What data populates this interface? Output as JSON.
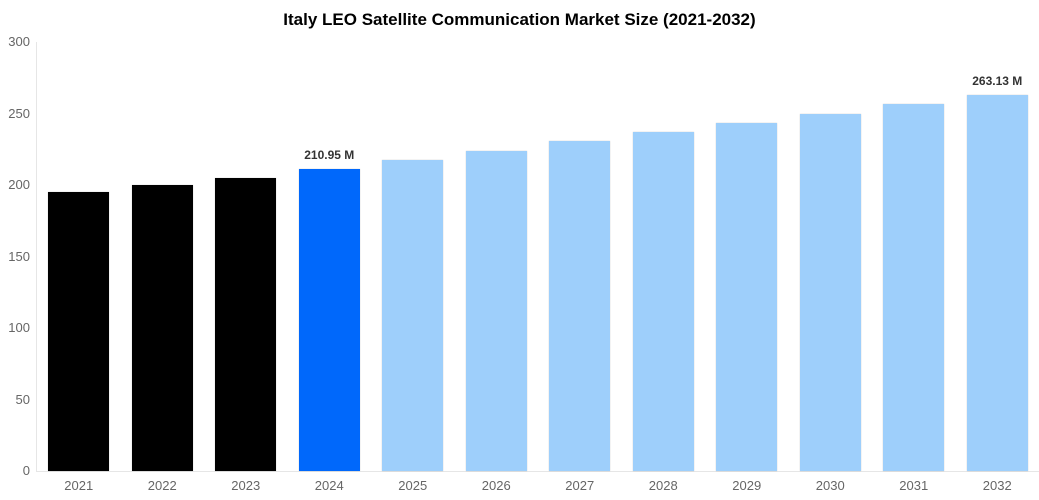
{
  "chart_data": {
    "type": "bar",
    "title": "Italy LEO Satellite Communication Market Size (2021-2032)",
    "categories": [
      "2021",
      "2022",
      "2023",
      "2024",
      "2025",
      "2026",
      "2027",
      "2028",
      "2029",
      "2030",
      "2031",
      "2032"
    ],
    "values": [
      195,
      200,
      205,
      210.95,
      217.5,
      224,
      230.5,
      237,
      243.5,
      250,
      256.5,
      263.13
    ],
    "point_labels": [
      "",
      "",
      "",
      "210.95 M",
      "",
      "",
      "",
      "",
      "",
      "",
      "",
      "263.13 M"
    ],
    "point_colors": [
      "#000000",
      "#000000",
      "#000000",
      "#0068fb",
      "#9ecffb",
      "#9ecffb",
      "#9ecffb",
      "#9ecffb",
      "#9ecffb",
      "#9ecffb",
      "#9ecffb",
      "#9ecffb"
    ],
    "xlabel": "",
    "ylabel": "",
    "ylim": [
      0,
      300
    ],
    "yticks": [
      0,
      50,
      100,
      150,
      200,
      250,
      300
    ],
    "grid": false,
    "legend": false,
    "colors": {
      "historical_bar": "#000000",
      "current_year_bar": "#0068fb",
      "forecast_bar": "#9ecffb",
      "axis_line": "#e6e6e6",
      "tick_label": "#666666",
      "data_label": "#333333",
      "title": "#000000",
      "background": "#ffffff"
    }
  }
}
